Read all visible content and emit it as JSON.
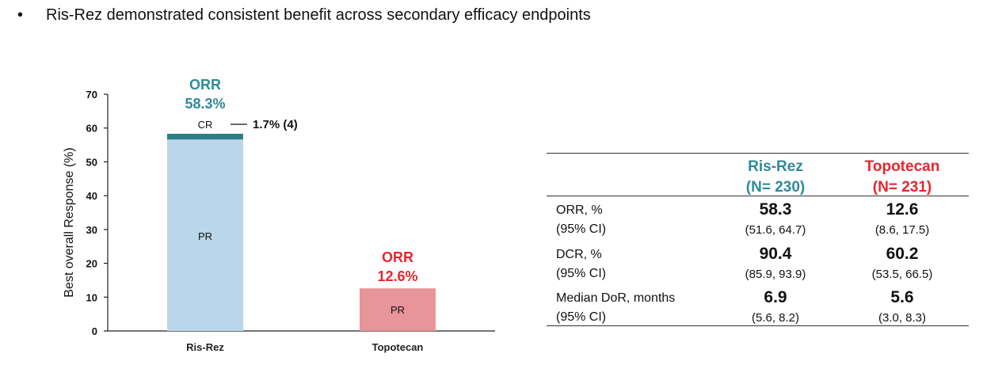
{
  "slide": {
    "bullet_text": "Ris-Rez demonstrated consistent benefit across secondary efficacy endpoints"
  },
  "colors": {
    "risrez_text": "#2f8a9a",
    "topotecan_text": "#e8262f",
    "risrez_pr": "#b9d6ea",
    "risrez_cr": "#2b7f86",
    "topotecan_pr": "#e8959a"
  },
  "chart_data": {
    "type": "bar",
    "stacked": true,
    "ylabel": "Best overall Response (%)",
    "ylim": [
      0,
      70
    ],
    "yticks": [
      "0",
      "10",
      "20",
      "30",
      "40",
      "50",
      "60",
      "70"
    ],
    "categories": [
      "Ris-Rez",
      "Topotecan"
    ],
    "series": [
      {
        "name": "PR",
        "values": [
          56.6,
          12.6
        ]
      },
      {
        "name": "CR",
        "values": [
          1.7,
          0
        ]
      }
    ],
    "annotations": {
      "risrez_orr_label": "ORR",
      "risrez_orr_value": "58.3%",
      "topotecan_orr_label": "ORR",
      "topotecan_orr_value": "12.6%",
      "cr_callout": "1.7% (4)",
      "risrez_pr_label": "PR",
      "risrez_cr_label": "CR",
      "topotecan_pr_label": "PR"
    }
  },
  "table": {
    "headers": [
      {
        "name": "Ris-Rez",
        "n": "(N= 230)"
      },
      {
        "name": "Topotecan",
        "n": "(N= 231)"
      }
    ],
    "rows": [
      {
        "label": "ORR, %",
        "sublabel": "(95% CI)",
        "risrez": "58.3",
        "risrez_ci": "(51.6, 64.7)",
        "topotecan": "12.6",
        "topotecan_ci": "(8.6, 17.5)"
      },
      {
        "label": "DCR, %",
        "sublabel": "(95% CI)",
        "risrez": "90.4",
        "risrez_ci": "(85.9, 93.9)",
        "topotecan": "60.2",
        "topotecan_ci": "(53.5, 66.5)"
      },
      {
        "label": "Median DoR, months",
        "sublabel": "(95% CI)",
        "risrez": "6.9",
        "risrez_ci": "(5.6, 8.2)",
        "topotecan": "5.6",
        "topotecan_ci": "(3.0, 8.3)"
      }
    ]
  }
}
